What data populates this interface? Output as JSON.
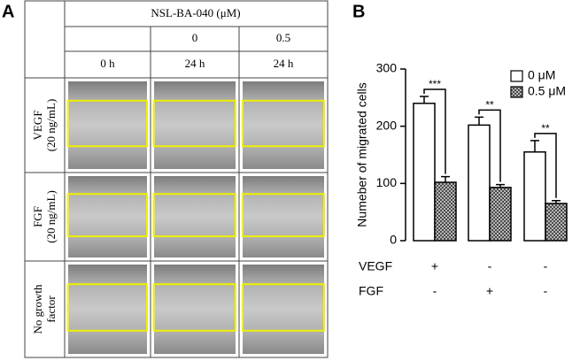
{
  "panel_a": {
    "label": "A",
    "header": "NSL-BA-040 (μM)",
    "concentrations": [
      "0",
      "0.5"
    ],
    "times": [
      "0 h",
      "24 h",
      "24 h"
    ],
    "rows": [
      [
        "VEGF",
        "(20 ng/mL)"
      ],
      [
        "FGF",
        "(20 ng/mL)"
      ],
      [
        "No growth",
        "factor"
      ]
    ]
  },
  "chart_data": {
    "type": "bar",
    "panel_label": "B",
    "y_label": "Numeber of migrated cells",
    "categories": [
      null,
      null,
      null
    ],
    "series": [
      {
        "name": "0 μM",
        "color": "#ffffff",
        "values": [
          240,
          202,
          155
        ],
        "errors": [
          12,
          14,
          20
        ]
      },
      {
        "name": "0.5 μM",
        "color": "#8c8c8c",
        "hatch": true,
        "values": [
          102,
          93,
          65
        ],
        "errors": [
          10,
          5,
          5
        ]
      }
    ],
    "significance": [
      "***",
      "**",
      "**"
    ],
    "conditions": [
      {
        "label": "VEGF",
        "values": [
          "+",
          "-",
          "-"
        ]
      },
      {
        "label": "FGF",
        "values": [
          "-",
          "+",
          "-"
        ]
      }
    ],
    "ylim": [
      0,
      300
    ],
    "yticks": [
      0,
      100,
      200,
      300
    ],
    "legend": "top-right"
  }
}
